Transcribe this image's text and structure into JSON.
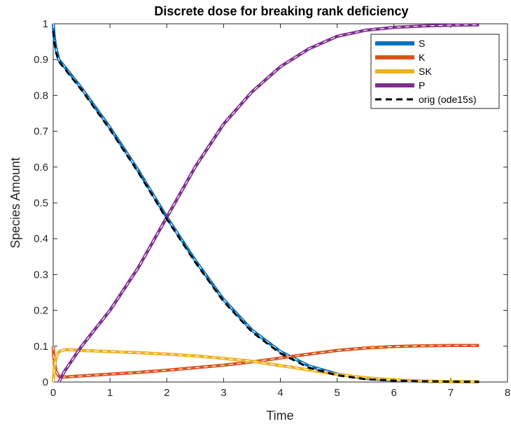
{
  "chart_data": {
    "type": "line",
    "title": "Discrete dose for breaking rank deficiency",
    "xlabel": "Time",
    "ylabel": "Species Amount",
    "xlim": [
      0,
      8
    ],
    "ylim": [
      0,
      1
    ],
    "xticks": [
      0,
      1,
      2,
      3,
      4,
      5,
      6,
      7,
      8
    ],
    "xtick_labels": [
      "0",
      "1",
      "2",
      "3",
      "4",
      "5",
      "6",
      "7",
      "8"
    ],
    "yticks": [
      0,
      0.1,
      0.2,
      0.3,
      0.4,
      0.5,
      0.6,
      0.7,
      0.8,
      0.9,
      1
    ],
    "ytick_labels": [
      "0",
      "0.1",
      "0.2",
      "0.3",
      "0.4",
      "0.5",
      "0.6",
      "0.7",
      "0.8",
      "0.9",
      "1"
    ],
    "grid": false,
    "legend_position": "top-right",
    "series": [
      {
        "name": "S",
        "color": "#0072BD",
        "style": "solid",
        "x": [
          0,
          0.02,
          0.05,
          0.1,
          0.2,
          0.5,
          1,
          1.5,
          2,
          2.5,
          3,
          3.5,
          4,
          4.5,
          5,
          5.5,
          6,
          6.5,
          7,
          7.5
        ],
        "y": [
          1,
          0.96,
          0.93,
          0.9,
          0.88,
          0.82,
          0.71,
          0.59,
          0.46,
          0.34,
          0.23,
          0.145,
          0.085,
          0.045,
          0.022,
          0.01,
          0.005,
          0.002,
          0.001,
          0.0005
        ]
      },
      {
        "name": "K",
        "color": "#D95319",
        "style": "solid",
        "x": [
          0,
          0.01,
          0.05,
          0.1,
          0.15,
          0.3,
          0.5,
          1,
          1.5,
          2,
          2.5,
          3,
          3.5,
          4,
          4.5,
          5,
          5.5,
          6,
          6.5,
          7,
          7.5
        ],
        "y": [
          0.1,
          0.07,
          0.03,
          0.016,
          0.013,
          0.015,
          0.017,
          0.022,
          0.027,
          0.033,
          0.04,
          0.047,
          0.056,
          0.067,
          0.078,
          0.088,
          0.095,
          0.099,
          0.101,
          0.102,
          0.102
        ]
      },
      {
        "name": "SK",
        "color": "#EDB120",
        "style": "solid",
        "x": [
          0,
          0.02,
          0.05,
          0.1,
          0.2,
          0.3,
          0.5,
          1,
          1.5,
          2,
          2.5,
          3,
          3.5,
          4,
          4.5,
          5,
          5.5,
          6,
          6.5,
          7,
          7.5
        ],
        "y": [
          0,
          0.04,
          0.07,
          0.085,
          0.09,
          0.09,
          0.088,
          0.085,
          0.082,
          0.078,
          0.073,
          0.066,
          0.058,
          0.046,
          0.034,
          0.021,
          0.012,
          0.006,
          0.003,
          0.001,
          0.0005
        ]
      },
      {
        "name": "P",
        "color": "#7E2F8E",
        "style": "solid",
        "x": [
          0.1,
          0.2,
          0.5,
          1,
          1.5,
          2,
          2.5,
          3,
          3.5,
          4,
          4.5,
          5,
          5.5,
          6,
          6.5,
          7,
          7.5
        ],
        "y": [
          0,
          0.03,
          0.1,
          0.2,
          0.32,
          0.46,
          0.6,
          0.72,
          0.81,
          0.88,
          0.93,
          0.965,
          0.982,
          0.99,
          0.994,
          0.996,
          0.997
        ]
      },
      {
        "name": "orig (ode15s)",
        "color": "#000000",
        "style": "dashed",
        "x": [
          0,
          0.02,
          0.05,
          0.1,
          0.2,
          0.5,
          1,
          1.5,
          2,
          2.5,
          3,
          3.5,
          4,
          4.5,
          5,
          5.5,
          6,
          6.5,
          7,
          7.5
        ],
        "y": [
          0.98,
          0.95,
          0.92,
          0.895,
          0.875,
          0.815,
          0.705,
          0.585,
          0.455,
          0.335,
          0.225,
          0.14,
          0.08,
          0.04,
          0.019,
          0.008,
          0.004,
          0.002,
          0.001,
          0.0005
        ]
      }
    ]
  }
}
